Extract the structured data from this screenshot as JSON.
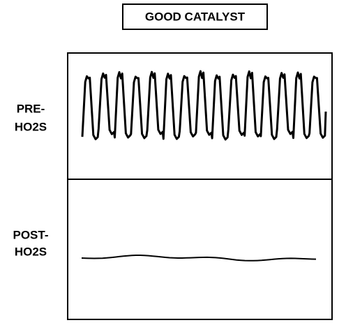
{
  "title": "GOOD CATALYST",
  "panels": [
    {
      "label": [
        "PRE-",
        "HO2S"
      ]
    },
    {
      "label": [
        "POST-",
        "HO2S"
      ]
    }
  ]
}
